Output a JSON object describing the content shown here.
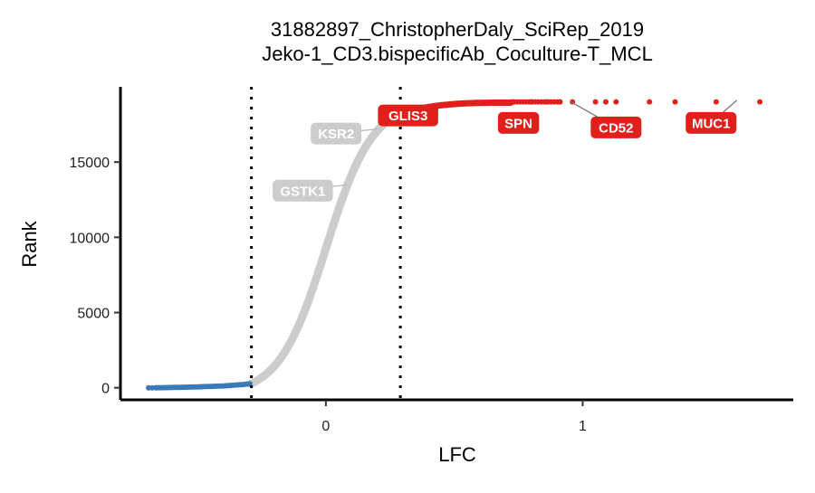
{
  "chart_data": {
    "type": "scatter",
    "title": "31882897_ChristopherDaly_SciRep_2019",
    "subtitle": "Jeko-1_CD3.bispecificAb_Coculture-T_MCL",
    "xlabel": "LFC",
    "ylabel": "Rank",
    "xlim": [
      -0.8,
      1.82
    ],
    "ylim": [
      -800,
      20000
    ],
    "x_ticks": [
      0,
      1
    ],
    "x_tick_labels": [
      "0",
      "1"
    ],
    "y_ticks": [
      0,
      5000,
      10000,
      15000
    ],
    "y_tick_labels": [
      "0",
      "5000",
      "10000",
      "15000"
    ],
    "thresholds": [
      -0.29,
      0.29
    ],
    "total_genes": 19114,
    "colors": {
      "down": "#3a7ab8",
      "neutral": "#cccccc",
      "up": "#e0201b",
      "threshold_line": "#000000"
    },
    "series": [
      {
        "name": "down",
        "color": "#3a7ab8",
        "description_points": [
          [
            -0.69,
            0
          ],
          [
            -0.65,
            5
          ],
          [
            -0.63,
            10
          ],
          [
            -0.58,
            25
          ],
          [
            -0.5,
            60
          ],
          [
            -0.4,
            120
          ],
          [
            -0.32,
            220
          ],
          [
            -0.29,
            280
          ]
        ]
      },
      {
        "name": "neutral",
        "color": "#cccccc",
        "curve": "sigmoid",
        "x_range": [
          -0.29,
          0.29
        ]
      },
      {
        "name": "up",
        "color": "#e0201b",
        "outliers": [
          [
            0.73,
            18960
          ],
          [
            0.8,
            18980
          ],
          [
            0.86,
            19000
          ],
          [
            0.91,
            19020
          ],
          [
            0.96,
            19040
          ],
          [
            1.05,
            19060
          ],
          [
            1.09,
            19070
          ],
          [
            1.13,
            19080
          ],
          [
            1.26,
            19090
          ],
          [
            1.36,
            19100
          ],
          [
            1.52,
            19105
          ],
          [
            1.69,
            19110
          ]
        ]
      }
    ],
    "annotations": [
      {
        "gene": "GLIS3",
        "x": 0.3,
        "y": 18200,
        "color": "#e0201b",
        "label_x": 0.32,
        "label_y": 18100
      },
      {
        "gene": "SPN",
        "x": 0.75,
        "y": 18950,
        "color": "#e0201b",
        "label_x": 0.75,
        "label_y": 17600
      },
      {
        "gene": "CD52",
        "x": 0.95,
        "y": 19040,
        "color": "#e0201b",
        "label_x": 1.13,
        "label_y": 17300
      },
      {
        "gene": "MUC1",
        "x": 1.6,
        "y": 19105,
        "color": "#e0201b",
        "label_x": 1.5,
        "label_y": 17600
      },
      {
        "gene": "KSR2",
        "x": 0.2,
        "y": 17200,
        "color": "#cccccc",
        "label_x": 0.04,
        "label_y": 16900
      },
      {
        "gene": "GSTK1",
        "x": 0.08,
        "y": 13500,
        "color": "#cccccc",
        "label_x": -0.09,
        "label_y": 13100
      }
    ]
  }
}
